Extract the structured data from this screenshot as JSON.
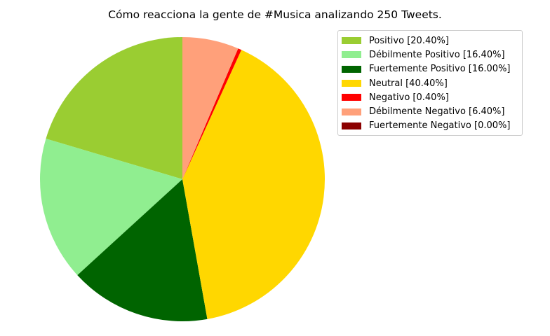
{
  "chart_data": {
    "type": "pie",
    "title": "Cómo reacciona la gente de #Musica analizando 250 Tweets.",
    "start_angle_deg": 90,
    "direction": "counterclockwise",
    "legend_position": "top-right",
    "slices": [
      {
        "label": "Positivo [20.40%]",
        "value": 20.4,
        "color": "#9acd32"
      },
      {
        "label": "Débilmente Positivo [16.40%]",
        "value": 16.4,
        "color": "#90ee90"
      },
      {
        "label": "Fuertemente Positivo [16.00%]",
        "value": 16.0,
        "color": "#006400"
      },
      {
        "label": "Neutral [40.40%]",
        "value": 40.4,
        "color": "#ffd700"
      },
      {
        "label": "Negativo [0.40%]",
        "value": 0.4,
        "color": "#ff0000"
      },
      {
        "label": "Débilmente Negativo [6.40%]",
        "value": 6.4,
        "color": "#ffa07a"
      },
      {
        "label": "Fuertemente Negativo [0.00%]",
        "value": 0.0,
        "color": "#8b0000"
      }
    ]
  }
}
